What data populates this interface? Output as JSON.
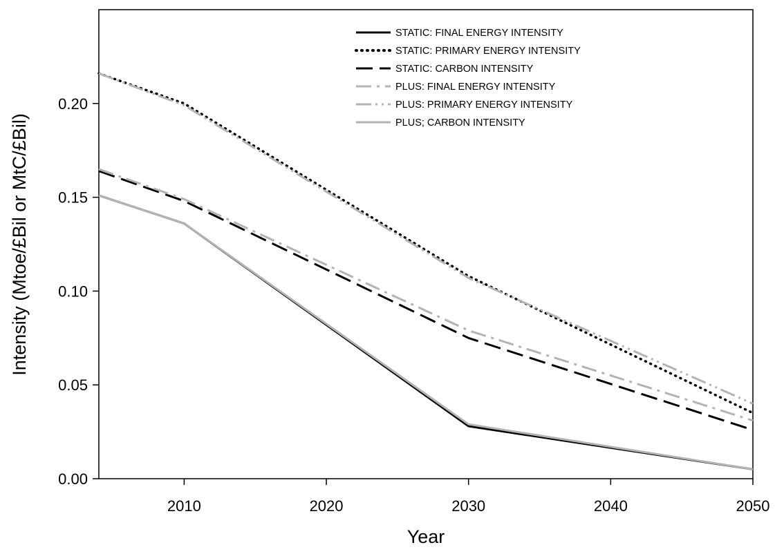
{
  "chart_data": {
    "type": "line",
    "title": "",
    "xlabel": "Year",
    "ylabel": "Intensity (Mtoe/£Bil or MtC/£Bil)",
    "xlim": [
      2004,
      2050
    ],
    "ylim": [
      0,
      0.25
    ],
    "xticks": [
      2010,
      2020,
      2030,
      2040,
      2050
    ],
    "yticks": [
      0.0,
      0.05,
      0.1,
      0.15,
      0.2
    ],
    "ytick_labels": [
      "0.00",
      "0.05",
      "0.10",
      "0.15",
      "0.20"
    ],
    "grid": false,
    "legend_position": "top-right",
    "series": [
      {
        "name": "STATIC: FINAL ENERGY INTENSITY",
        "color": "#000000",
        "dash": "solid",
        "x": [
          2004,
          2010,
          2030,
          2050
        ],
        "y": [
          0.151,
          0.136,
          0.028,
          0.005
        ]
      },
      {
        "name": "STATIC: PRIMARY ENERGY INTENSITY",
        "color": "#000000",
        "dash": "dotted",
        "x": [
          2004,
          2010,
          2030,
          2050
        ],
        "y": [
          0.216,
          0.2,
          0.108,
          0.035
        ]
      },
      {
        "name": "STATIC: CARBON INTENSITY",
        "color": "#000000",
        "dash": "dashed",
        "x": [
          2004,
          2010,
          2030,
          2050
        ],
        "y": [
          0.164,
          0.148,
          0.075,
          0.026
        ]
      },
      {
        "name": "PLUS: FINAL ENERGY INTENSITY",
        "color": "#b3b3b3",
        "dash": "dashdot",
        "x": [
          2004,
          2010,
          2030,
          2050
        ],
        "y": [
          0.165,
          0.149,
          0.079,
          0.031
        ]
      },
      {
        "name": "PLUS: PRIMARY ENERGY INTENSITY",
        "color": "#b3b3b3",
        "dash": "dashdotdot",
        "x": [
          2004,
          2010,
          2030,
          2050
        ],
        "y": [
          0.216,
          0.199,
          0.107,
          0.04
        ]
      },
      {
        "name": "PLUS; CARBON INTENSITY",
        "color": "#b3b3b3",
        "dash": "solid",
        "x": [
          2004,
          2010,
          2030,
          2050
        ],
        "y": [
          0.151,
          0.136,
          0.029,
          0.005
        ]
      }
    ]
  }
}
